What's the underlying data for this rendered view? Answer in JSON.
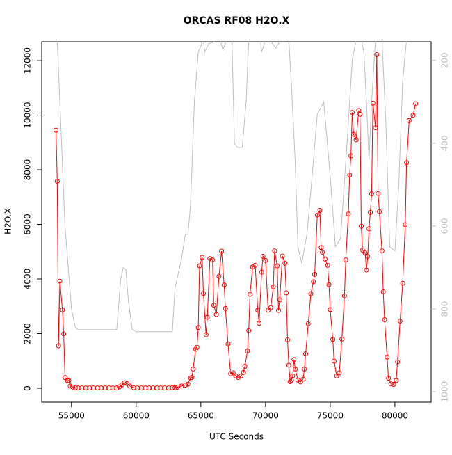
{
  "chart_data": {
    "type": "line",
    "title": "ORCAS RF08 H2O.X",
    "x_label": "UTC Seconds",
    "y_label": "H2O.X",
    "xlim": [
      52700,
      82800
    ],
    "ylim": [
      -510,
      12690
    ],
    "y2lim": [
      1025,
      155
    ],
    "xticks": [
      55000,
      60000,
      65000,
      70000,
      75000,
      80000
    ],
    "yticks": [
      0,
      2000,
      4000,
      6000,
      8000,
      10000,
      12000
    ],
    "y2ticks": [
      200,
      400,
      600,
      800,
      1000
    ],
    "series": [
      {
        "color": "#ff0000",
        "markers": true,
        "x": [
          53800,
          53900,
          54000,
          54100,
          54300,
          54400,
          54500,
          54700,
          54800,
          54900,
          55100,
          55300,
          55500,
          55800,
          56100,
          56400,
          56700,
          57000,
          57300,
          57600,
          57900,
          58200,
          58500,
          58700,
          58900,
          59100,
          59300,
          59500,
          59800,
          60100,
          60400,
          60700,
          61000,
          61300,
          61600,
          61900,
          62200,
          62500,
          62800,
          63000,
          63200,
          63500,
          63800,
          64000,
          64200,
          64300,
          64400,
          64600,
          64700,
          64800,
          64900,
          65100,
          65200,
          65400,
          65500,
          65700,
          65900,
          66000,
          66200,
          66400,
          66600,
          66800,
          66900,
          67100,
          67300,
          67500,
          67700,
          67900,
          68100,
          68300,
          68400,
          68600,
          68700,
          68800,
          69000,
          69200,
          69400,
          69500,
          69700,
          69800,
          70000,
          70200,
          70400,
          70600,
          70700,
          70900,
          71000,
          71100,
          71300,
          71500,
          71600,
          71700,
          71800,
          71900,
          72000,
          72100,
          72200,
          72300,
          72500,
          72700,
          72900,
          73000,
          73100,
          73300,
          73500,
          73700,
          73800,
          74000,
          74200,
          74300,
          74400,
          74600,
          74800,
          74900,
          75000,
          75200,
          75300,
          75500,
          75700,
          75900,
          76100,
          76200,
          76400,
          76500,
          76600,
          76700,
          76800,
          77000,
          77200,
          77300,
          77400,
          77500,
          77700,
          77800,
          77900,
          78000,
          78100,
          78200,
          78300,
          78500,
          78600,
          78700,
          78800,
          79000,
          79100,
          79200,
          79400,
          79500,
          79700,
          79900,
          80100,
          80200,
          80400,
          80600,
          80800,
          80900,
          81100,
          81400,
          81600
        ],
        "values": [
          9450,
          7580,
          1550,
          3920,
          2870,
          1990,
          390,
          270,
          280,
          80,
          40,
          20,
          10,
          10,
          10,
          10,
          10,
          10,
          10,
          10,
          10,
          10,
          10,
          50,
          120,
          200,
          170,
          80,
          20,
          10,
          10,
          10,
          10,
          10,
          10,
          10,
          10,
          10,
          20,
          20,
          40,
          80,
          110,
          150,
          380,
          390,
          700,
          1430,
          1500,
          2220,
          4480,
          4790,
          3470,
          1960,
          2600,
          4750,
          4700,
          3040,
          2700,
          4100,
          5020,
          3780,
          2920,
          1620,
          530,
          560,
          450,
          390,
          450,
          580,
          800,
          1360,
          2110,
          3440,
          4440,
          4500,
          2860,
          2380,
          4250,
          4830,
          4680,
          2860,
          2950,
          3710,
          5030,
          4480,
          2850,
          3240,
          4840,
          4580,
          3490,
          1770,
          840,
          240,
          290,
          450,
          1050,
          700,
          300,
          230,
          330,
          700,
          1260,
          2360,
          3460,
          3900,
          4170,
          6340,
          6510,
          5150,
          4980,
          4730,
          4500,
          3790,
          2880,
          1790,
          990,
          450,
          560,
          1800,
          3380,
          4700,
          6380,
          7810,
          8510,
          10100,
          9300,
          9100,
          10170,
          10030,
          5930,
          5060,
          4950,
          4330,
          4830,
          5840,
          6440,
          7120,
          10440,
          9540,
          12220,
          7130,
          6470,
          5030,
          3530,
          2510,
          1140,
          370,
          160,
          140,
          280,
          960,
          2460,
          3840,
          5990,
          8260,
          9800,
          10000,
          10420
        ]
      },
      {
        "color": "#bebebe",
        "axis": "y2",
        "markers": false,
        "x": [
          53900,
          54100,
          54500,
          55000,
          55300,
          55500,
          58500,
          58800,
          59000,
          59200,
          59400,
          59700,
          60000,
          62800,
          63000,
          63500,
          63800,
          64000,
          64200,
          64500,
          64800,
          65200,
          65300,
          65600,
          66500,
          66700,
          67000,
          67400,
          67600,
          67800,
          68200,
          68500,
          68700,
          69600,
          69700,
          70000,
          70300,
          70800,
          71200,
          71800,
          72000,
          72300,
          72500,
          72800,
          73200,
          73600,
          74000,
          74500,
          75000,
          75400,
          75800,
          76300,
          76700,
          77000,
          77400,
          77600,
          77800,
          78000,
          78200,
          78500,
          79000,
          79300,
          79600,
          80000,
          80300,
          80600,
          80900
        ],
        "values": [
          150,
          300,
          600,
          800,
          845,
          850,
          850,
          730,
          700,
          705,
          780,
          850,
          855,
          855,
          750,
          680,
          620,
          620,
          550,
          300,
          180,
          150,
          180,
          160,
          150,
          175,
          150,
          150,
          400,
          410,
          410,
          300,
          150,
          150,
          180,
          150,
          150,
          170,
          150,
          150,
          260,
          450,
          650,
          690,
          620,
          480,
          330,
          300,
          480,
          650,
          630,
          400,
          200,
          150,
          150,
          180,
          300,
          440,
          300,
          150,
          150,
          350,
          650,
          660,
          500,
          250,
          150
        ]
      }
    ]
  }
}
